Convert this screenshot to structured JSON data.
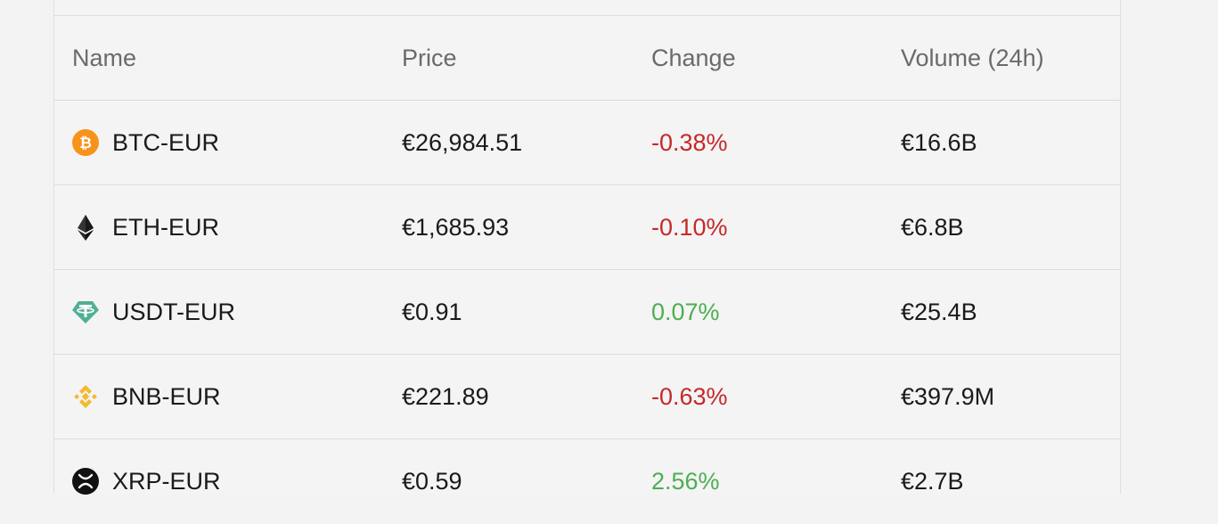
{
  "table": {
    "headers": {
      "name": "Name",
      "price": "Price",
      "change": "Change",
      "volume": "Volume (24h)"
    },
    "rows": [
      {
        "icon": "bitcoin-icon",
        "name": "BTC-EUR",
        "price": "€26,984.51",
        "change": "-0.38%",
        "change_dir": "negative",
        "volume": "€16.6B"
      },
      {
        "icon": "ethereum-icon",
        "name": "ETH-EUR",
        "price": "€1,685.93",
        "change": "-0.10%",
        "change_dir": "negative",
        "volume": "€6.8B"
      },
      {
        "icon": "tether-icon",
        "name": "USDT-EUR",
        "price": "€0.91",
        "change": "0.07%",
        "change_dir": "positive",
        "volume": "€25.4B"
      },
      {
        "icon": "binance-coin-icon",
        "name": "BNB-EUR",
        "price": "€221.89",
        "change": "-0.63%",
        "change_dir": "negative",
        "volume": "€397.9M"
      },
      {
        "icon": "xrp-icon",
        "name": "XRP-EUR",
        "price": "€0.59",
        "change": "2.56%",
        "change_dir": "positive",
        "volume": "€2.7B"
      }
    ]
  },
  "colors": {
    "negative": "#c62828",
    "positive": "#4caf50",
    "bitcoin": "#f7931a",
    "tether": "#50af95",
    "binance": "#f3ba2f"
  }
}
